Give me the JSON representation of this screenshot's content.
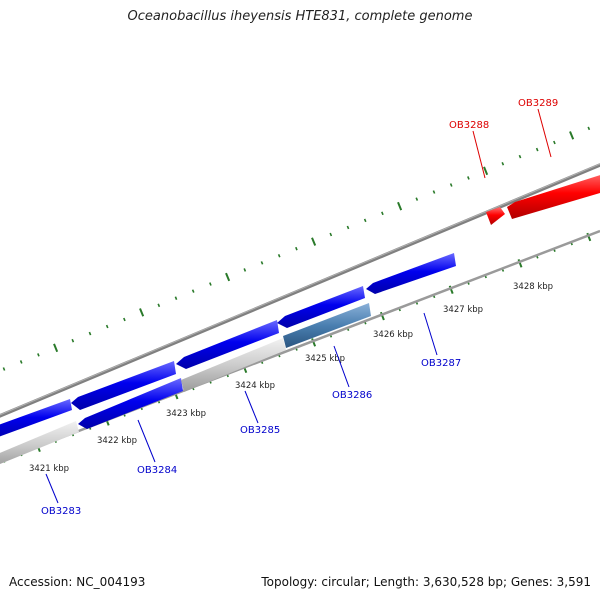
{
  "title": "Oceanobacillus iheyensis HTE831, complete genome",
  "footer": {
    "accession": "Accession: NC_004193",
    "summary": "Topology: circular; Length: 3,630,528 bp; Genes: 3,591"
  },
  "colors": {
    "forward_gene": "#ff0000",
    "reverse_gene": "#0000ee",
    "pseudo_gene": "#cccccc",
    "highlight_gene": "#4a7fb0",
    "backbone": "#808080",
    "tick": "#2a7a2a",
    "label_reverse": "#0000cc",
    "label_forward": "#dd0000"
  },
  "scale_labels": [
    "3421 kbp",
    "3422 kbp",
    "3423 kbp",
    "3424 kbp",
    "3425 kbp",
    "3426 kbp",
    "3427 kbp",
    "3428 kbp"
  ],
  "gene_labels": [
    {
      "name": "OB3283",
      "strand": "reverse"
    },
    {
      "name": "OB3284",
      "strand": "reverse"
    },
    {
      "name": "OB3285",
      "strand": "reverse"
    },
    {
      "name": "OB3286",
      "strand": "reverse"
    },
    {
      "name": "OB3287",
      "strand": "reverse"
    },
    {
      "name": "OB3288",
      "strand": "forward"
    },
    {
      "name": "OB3289",
      "strand": "forward"
    }
  ]
}
